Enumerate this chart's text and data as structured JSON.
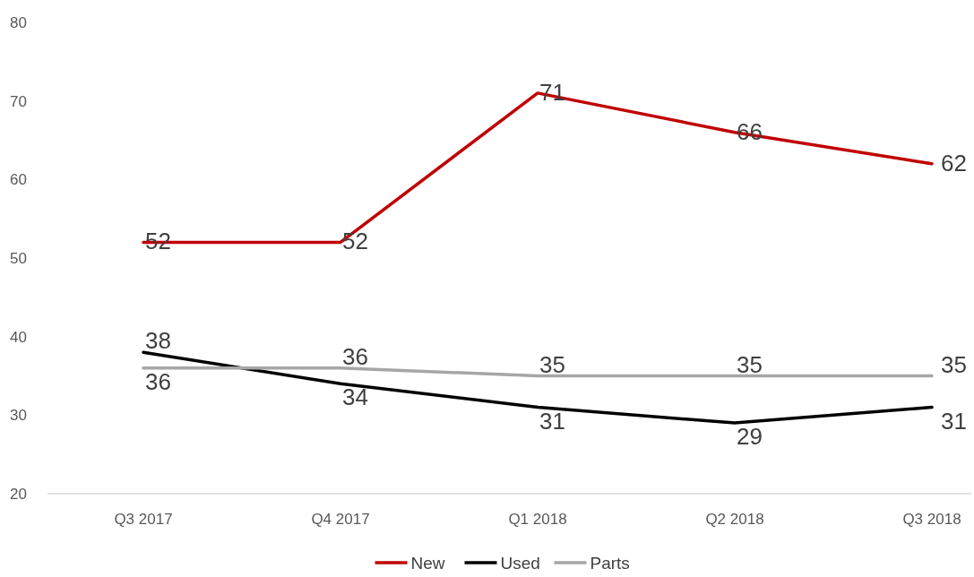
{
  "chart_data": {
    "type": "line",
    "categories": [
      "Q3 2017",
      "Q4 2017",
      "Q1 2018",
      "Q2 2018",
      "Q3 2018"
    ],
    "series": [
      {
        "name": "New",
        "color": "#c00000",
        "values": [
          52,
          52,
          71,
          66,
          62
        ]
      },
      {
        "name": "Used",
        "color": "#000000",
        "values": [
          38,
          34,
          31,
          29,
          31
        ]
      },
      {
        "name": "Parts",
        "color": "#a6a6a6",
        "values": [
          36,
          36,
          35,
          35,
          35
        ]
      }
    ],
    "ylim": [
      20,
      80
    ],
    "yticks": [
      20,
      30,
      40,
      50,
      60,
      70,
      80
    ],
    "grid": false,
    "legend": "bottom",
    "data_labels": true,
    "marker": "none",
    "line_style": "solid"
  }
}
